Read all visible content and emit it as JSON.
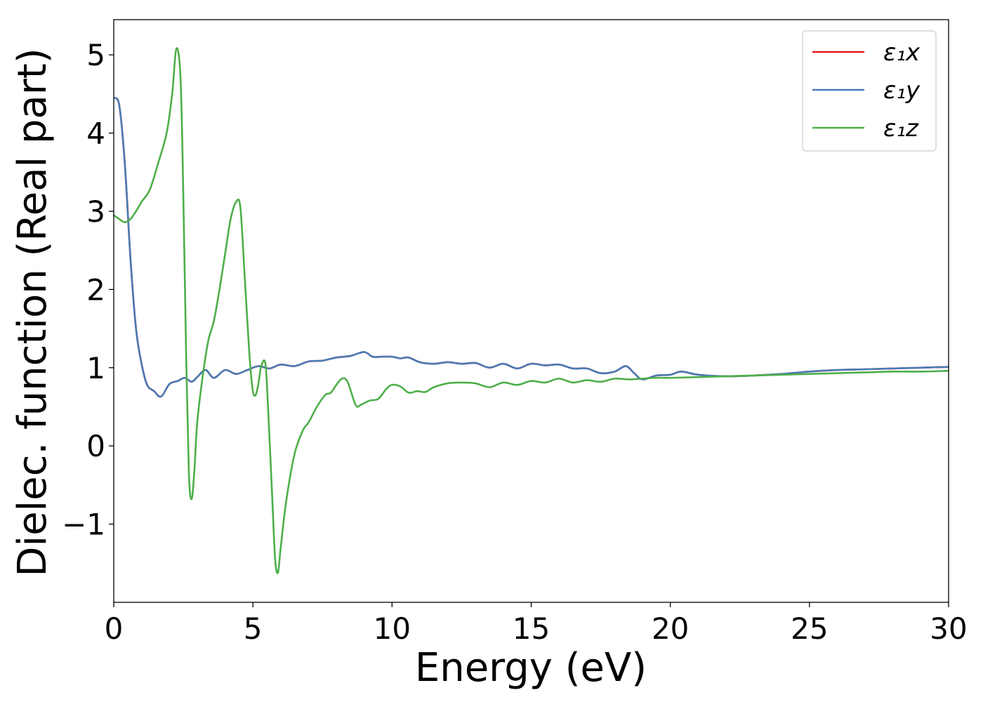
{
  "chart_data": {
    "type": "line",
    "xlabel": "Energy (eV)",
    "ylabel": "Dielec. function (Real part)",
    "xlim": [
      0,
      30
    ],
    "ylim": [
      -2.0,
      5.45
    ],
    "xticks": [
      0,
      5,
      10,
      15,
      20,
      25,
      30
    ],
    "yticks": [
      -1,
      0,
      1,
      2,
      3,
      4,
      5
    ],
    "ytick_labels": [
      "−1",
      "0",
      "1",
      "2",
      "3",
      "4",
      "5"
    ],
    "grid": false,
    "legend_position": "top-right",
    "series": [
      {
        "name": "ε₁x",
        "color": "#e41a1c",
        "x": [
          0,
          0.2,
          0.4,
          0.6,
          0.8,
          1.0,
          1.2,
          1.45,
          1.7,
          2.0,
          2.3,
          2.55,
          2.8,
          3.0,
          3.3,
          3.6,
          4.0,
          4.4,
          4.8,
          5.2,
          5.6,
          6.0,
          6.5,
          7.0,
          7.5,
          8.0,
          8.5,
          9.0,
          9.3,
          9.6,
          10.0,
          10.3,
          10.6,
          11.0,
          11.5,
          12.0,
          12.5,
          13.0,
          13.5,
          14.0,
          14.5,
          15.0,
          15.5,
          16.0,
          16.5,
          17.0,
          17.5,
          18.0,
          18.4,
          18.7,
          19.0,
          19.5,
          20.0,
          20.4,
          21.0,
          22.0,
          23.0,
          24.0,
          25.0,
          26.0,
          27.0,
          28.0,
          29.0,
          30.0
        ],
        "values": [
          4.45,
          4.35,
          3.6,
          2.4,
          1.5,
          1.05,
          0.78,
          0.7,
          0.63,
          0.79,
          0.83,
          0.87,
          0.82,
          0.88,
          0.97,
          0.87,
          0.97,
          0.92,
          0.97,
          1.02,
          0.99,
          1.04,
          1.02,
          1.08,
          1.09,
          1.13,
          1.15,
          1.2,
          1.14,
          1.14,
          1.14,
          1.12,
          1.13,
          1.07,
          1.05,
          1.07,
          1.05,
          1.06,
          1.0,
          1.05,
          0.99,
          1.05,
          1.03,
          1.04,
          0.99,
          0.99,
          0.93,
          0.95,
          1.02,
          0.93,
          0.85,
          0.9,
          0.91,
          0.95,
          0.91,
          0.89,
          0.9,
          0.92,
          0.95,
          0.97,
          0.98,
          0.99,
          1.0,
          1.01
        ]
      },
      {
        "name": "ε₁y",
        "color": "#4a7bb5",
        "x": [
          0,
          0.2,
          0.4,
          0.6,
          0.8,
          1.0,
          1.2,
          1.45,
          1.7,
          2.0,
          2.3,
          2.55,
          2.8,
          3.0,
          3.3,
          3.6,
          4.0,
          4.4,
          4.8,
          5.2,
          5.6,
          6.0,
          6.5,
          7.0,
          7.5,
          8.0,
          8.5,
          9.0,
          9.3,
          9.6,
          10.0,
          10.3,
          10.6,
          11.0,
          11.5,
          12.0,
          12.5,
          13.0,
          13.5,
          14.0,
          14.5,
          15.0,
          15.5,
          16.0,
          16.5,
          17.0,
          17.5,
          18.0,
          18.4,
          18.7,
          19.0,
          19.5,
          20.0,
          20.4,
          21.0,
          22.0,
          23.0,
          24.0,
          25.0,
          26.0,
          27.0,
          28.0,
          29.0,
          30.0
        ],
        "values": [
          4.45,
          4.35,
          3.6,
          2.4,
          1.5,
          1.05,
          0.78,
          0.7,
          0.63,
          0.79,
          0.83,
          0.87,
          0.82,
          0.88,
          0.97,
          0.87,
          0.97,
          0.92,
          0.97,
          1.02,
          0.99,
          1.04,
          1.02,
          1.08,
          1.09,
          1.13,
          1.15,
          1.2,
          1.14,
          1.14,
          1.14,
          1.12,
          1.13,
          1.07,
          1.05,
          1.07,
          1.05,
          1.06,
          1.0,
          1.05,
          0.99,
          1.05,
          1.03,
          1.04,
          0.99,
          0.99,
          0.93,
          0.95,
          1.02,
          0.93,
          0.85,
          0.9,
          0.91,
          0.95,
          0.91,
          0.89,
          0.9,
          0.92,
          0.95,
          0.97,
          0.98,
          0.99,
          1.0,
          1.01
        ]
      },
      {
        "name": "ε₁z",
        "color": "#4daf4a",
        "x": [
          0,
          0.2,
          0.4,
          0.6,
          0.8,
          1.0,
          1.3,
          1.6,
          1.9,
          2.1,
          2.25,
          2.4,
          2.5,
          2.6,
          2.7,
          2.8,
          2.9,
          3.0,
          3.2,
          3.4,
          3.6,
          3.8,
          4.0,
          4.2,
          4.4,
          4.55,
          4.7,
          4.8,
          4.9,
          5.0,
          5.1,
          5.2,
          5.3,
          5.45,
          5.55,
          5.7,
          5.8,
          5.9,
          6.0,
          6.2,
          6.5,
          6.8,
          7.0,
          7.3,
          7.6,
          7.8,
          8.0,
          8.2,
          8.4,
          8.7,
          8.9,
          9.2,
          9.5,
          9.8,
          10.0,
          10.3,
          10.6,
          10.9,
          11.2,
          11.5,
          12.0,
          12.5,
          13.0,
          13.5,
          14.0,
          14.5,
          15.0,
          15.5,
          16.0,
          16.5,
          17.0,
          17.5,
          18.0,
          18.5,
          19.0,
          19.5,
          20.0,
          21.0,
          22.0,
          23.0,
          24.0,
          25.0,
          26.0,
          27.0,
          28.0,
          29.0,
          30.0
        ],
        "values": [
          2.95,
          2.9,
          2.86,
          2.9,
          3.0,
          3.12,
          3.28,
          3.62,
          4.0,
          4.5,
          5.08,
          4.7,
          3.2,
          1.2,
          -0.35,
          -0.68,
          -0.3,
          0.3,
          0.9,
          1.35,
          1.6,
          2.0,
          2.45,
          2.9,
          3.12,
          3.05,
          2.2,
          1.6,
          1.05,
          0.7,
          0.65,
          0.8,
          1.02,
          1.05,
          0.45,
          -0.7,
          -1.45,
          -1.62,
          -1.3,
          -0.7,
          -0.1,
          0.2,
          0.3,
          0.5,
          0.65,
          0.68,
          0.78,
          0.86,
          0.82,
          0.52,
          0.53,
          0.58,
          0.6,
          0.73,
          0.78,
          0.76,
          0.68,
          0.7,
          0.69,
          0.75,
          0.8,
          0.81,
          0.8,
          0.75,
          0.81,
          0.78,
          0.83,
          0.81,
          0.86,
          0.81,
          0.84,
          0.82,
          0.86,
          0.85,
          0.86,
          0.87,
          0.87,
          0.88,
          0.89,
          0.9,
          0.91,
          0.92,
          0.93,
          0.94,
          0.95,
          0.95,
          0.96
        ]
      }
    ]
  }
}
